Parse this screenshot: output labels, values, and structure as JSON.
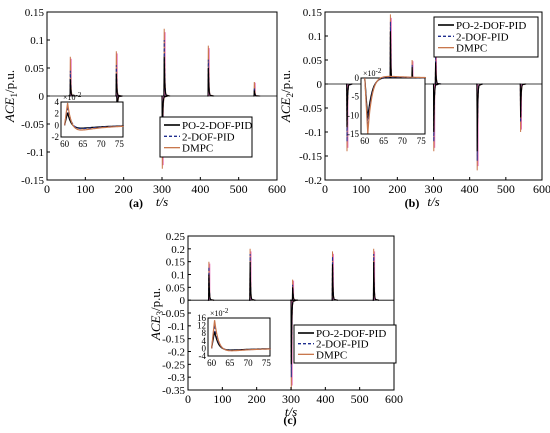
{
  "chart_data": [
    {
      "type": "line",
      "panel_label": "(a)",
      "xlabel": "t/s",
      "ylabel_main": "ACE",
      "ylabel_sub": "1",
      "ylabel_unit": "/p.u.",
      "xlim": [
        0,
        600
      ],
      "ylim": [
        -0.15,
        0.15
      ],
      "x_ticks": [
        0,
        100,
        200,
        300,
        400,
        500,
        600
      ],
      "y_ticks": [
        -0.15,
        -0.1,
        -0.05,
        0,
        0.05,
        0.1,
        0.15
      ],
      "y_tick_labels": [
        "-0.15",
        "-0.1",
        "-0.05",
        "0",
        "0.05",
        "0.1",
        "0.15"
      ],
      "legend": [
        "PO-2-DOF-PID",
        "2-DOF-PID",
        "DMPC"
      ],
      "events": [
        {
          "t": 60,
          "po": 0.03,
          "dof": 0.045,
          "dmpc": 0.07
        },
        {
          "t": 180,
          "po": 0.04,
          "dof": 0.055,
          "dmpc": 0.08
        },
        {
          "t": 182,
          "po": -0.03,
          "dof": -0.04,
          "dmpc": -0.06
        },
        {
          "t": 300,
          "po": -0.07,
          "dof": -0.09,
          "dmpc": -0.13
        },
        {
          "t": 305,
          "po": 0.07,
          "dof": 0.1,
          "dmpc": 0.12
        },
        {
          "t": 420,
          "po": 0.05,
          "dof": 0.065,
          "dmpc": 0.09
        },
        {
          "t": 540,
          "po": 0.01,
          "dof": 0.015,
          "dmpc": 0.025
        }
      ],
      "inset": {
        "exponent_label": "×10",
        "exponent": "-2",
        "xlim": [
          59,
          76
        ],
        "ylim": [
          -2,
          4
        ],
        "x_ticks": [
          60,
          65,
          70,
          75
        ],
        "y_ticks": [
          -2,
          0,
          2,
          4
        ],
        "y_tick_labels": [
          "-2",
          "0",
          "2",
          "4"
        ],
        "series": [
          {
            "name": "PO-2-DOF-PID",
            "peak": 2.2,
            "undershoot": -1.0
          },
          {
            "name": "2-DOF-PID",
            "peak": 3.3,
            "undershoot": -1.2
          },
          {
            "name": "DMPC",
            "peak": 3.9,
            "undershoot": -1.7
          }
        ]
      }
    },
    {
      "type": "line",
      "panel_label": "(b)",
      "xlabel": "t/s",
      "ylabel_main": "ACE",
      "ylabel_sub": "2",
      "ylabel_unit": "/p.u.",
      "xlim": [
        0,
        600
      ],
      "ylim": [
        -0.2,
        0.15
      ],
      "x_ticks": [
        0,
        100,
        200,
        300,
        400,
        500,
        600
      ],
      "y_ticks": [
        -0.2,
        -0.15,
        -0.1,
        -0.05,
        0,
        0.05,
        0.1,
        0.15
      ],
      "y_tick_labels": [
        "-0.2",
        "-0.15",
        "-0.1",
        "-0.05",
        "0",
        "0.05",
        "0.1",
        "0.15"
      ],
      "legend": [
        "PO-2-DOF-PID",
        "2-DOF-PID",
        "DMPC"
      ],
      "events": [
        {
          "t": 60,
          "po": -0.09,
          "dof": -0.12,
          "dmpc": -0.14
        },
        {
          "t": 120,
          "po": -0.015,
          "dof": -0.02,
          "dmpc": -0.03
        },
        {
          "t": 180,
          "po": 0.11,
          "dof": 0.13,
          "dmpc": 0.145
        },
        {
          "t": 240,
          "po": 0.035,
          "dof": 0.04,
          "dmpc": 0.05
        },
        {
          "t": 300,
          "po": -0.1,
          "dof": -0.12,
          "dmpc": -0.14
        },
        {
          "t": 305,
          "po": 0.045,
          "dof": 0.055,
          "dmpc": 0.075
        },
        {
          "t": 420,
          "po": -0.14,
          "dof": -0.16,
          "dmpc": -0.18
        },
        {
          "t": 540,
          "po": -0.07,
          "dof": -0.08,
          "dmpc": -0.1
        }
      ],
      "inset": {
        "exponent_label": "×10",
        "exponent": "-2",
        "xlim": [
          59,
          76
        ],
        "ylim": [
          -15,
          0
        ],
        "x_ticks": [
          60,
          65,
          70,
          75
        ],
        "y_ticks": [
          -15,
          -10,
          -5,
          0
        ],
        "y_tick_labels": [
          "-15",
          "-10",
          "-5",
          "0"
        ],
        "series": [
          {
            "name": "PO-2-DOF-PID",
            "peak": -11.0,
            "undershoot": 0.5
          },
          {
            "name": "2-DOF-PID",
            "peak": -13.0,
            "undershoot": 0.8
          },
          {
            "name": "DMPC",
            "peak": -15.0,
            "undershoot": 1.2
          }
        ]
      }
    },
    {
      "type": "line",
      "panel_label": "(c)",
      "xlabel": "t/s",
      "ylabel_main": "ACE",
      "ylabel_sub": "3",
      "ylabel_unit": "/p.u.",
      "xlim": [
        0,
        600
      ],
      "ylim": [
        -0.35,
        0.25
      ],
      "x_ticks": [
        0,
        100,
        200,
        300,
        400,
        500,
        600
      ],
      "y_ticks": [
        -0.35,
        -0.3,
        -0.25,
        -0.2,
        -0.15,
        -0.1,
        -0.05,
        0,
        0.05,
        0.1,
        0.15,
        0.2,
        0.25
      ],
      "y_tick_labels": [
        "-0.35",
        "-0.3",
        "-0.25",
        "-0.2",
        "-0.15",
        "-0.1",
        "-0.05",
        "0",
        "0.05",
        "0.1",
        "0.15",
        "0.2",
        "0.25"
      ],
      "legend": [
        "PO-2-DOF-PID",
        "2-DOF-PID",
        "DMPC"
      ],
      "events": [
        {
          "t": 60,
          "po": 0.1,
          "dof": 0.13,
          "dmpc": 0.15
        },
        {
          "t": 180,
          "po": 0.15,
          "dof": 0.18,
          "dmpc": 0.2
        },
        {
          "t": 300,
          "po": -0.25,
          "dof": -0.3,
          "dmpc": -0.35
        },
        {
          "t": 304,
          "po": 0.05,
          "dof": 0.06,
          "dmpc": 0.08
        },
        {
          "t": 420,
          "po": 0.14,
          "dof": 0.17,
          "dmpc": 0.19
        },
        {
          "t": 540,
          "po": 0.15,
          "dof": 0.18,
          "dmpc": 0.2
        }
      ],
      "inset": {
        "exponent_label": "×10",
        "exponent": "-2",
        "xlim": [
          59,
          76
        ],
        "ylim": [
          -4,
          16
        ],
        "x_ticks": [
          60,
          65,
          70,
          75
        ],
        "y_ticks": [
          -4,
          0,
          4,
          8,
          12,
          16
        ],
        "y_tick_labels": [
          "-4",
          "0",
          "4",
          "8",
          "12",
          "16"
        ],
        "series": [
          {
            "name": "PO-2-DOF-PID",
            "peak": 9.0,
            "undershoot": -2.0
          },
          {
            "name": "2-DOF-PID",
            "peak": 12.5,
            "undershoot": -2.5
          },
          {
            "name": "DMPC",
            "peak": 15.0,
            "undershoot": -3.0
          }
        ]
      }
    }
  ],
  "colors": {
    "po": "#000000",
    "dof": "#1f2f8f",
    "dmpc": "#c8754a",
    "pink": "#e33aa8"
  }
}
